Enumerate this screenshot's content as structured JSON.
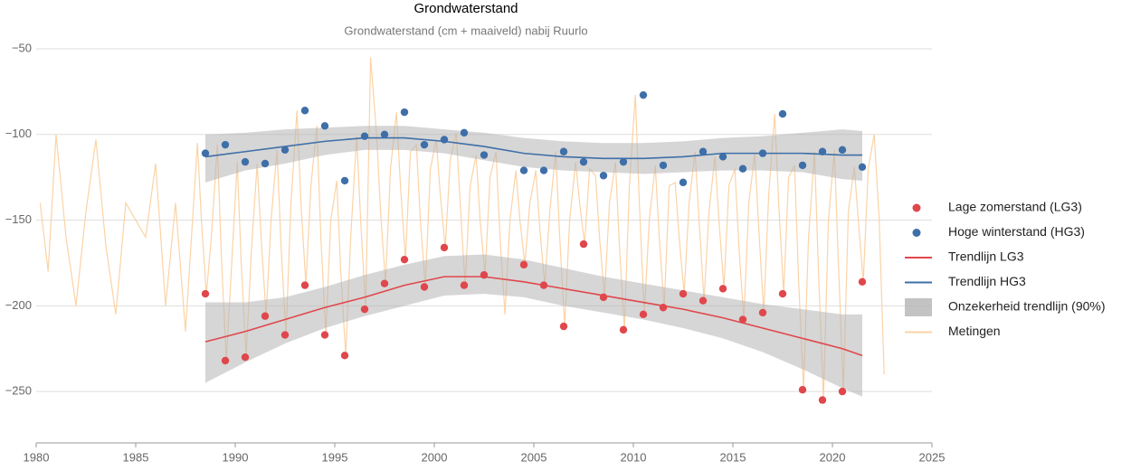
{
  "chart_data": {
    "type": "scatter",
    "title": "Grondwaterstand",
    "subtitle": "Grondwaterstand (cm + maaiveld) nabij Ruurlo",
    "xlim": [
      1980,
      2025
    ],
    "xticks": [
      1980,
      1985,
      1990,
      1995,
      2000,
      2005,
      2010,
      2015,
      2020,
      2025
    ],
    "ylim": [
      -280,
      -50
    ],
    "yticks": [
      {
        "value": -50,
        "label": "−50"
      },
      {
        "value": -100,
        "label": "−100"
      },
      {
        "value": -150,
        "label": "−150"
      },
      {
        "value": -200,
        "label": "−200"
      },
      {
        "value": -250,
        "label": "−250"
      }
    ],
    "grid": true,
    "legend": "right",
    "series": [
      {
        "name": "Metingen",
        "kind": "line",
        "color": "#fbd3a6",
        "x": [
          1980.2,
          1980.6,
          1981,
          1981.5,
          1982,
          1982.5,
          1983,
          1983.5,
          1984,
          1984.5,
          1985,
          1985.5,
          1986,
          1986.5,
          1987,
          1987.5,
          1988.1,
          1988.3,
          1988.55,
          1988.8,
          1989.1,
          1989.3,
          1989.55,
          1989.8,
          1990.1,
          1990.3,
          1990.55,
          1990.8,
          1991.1,
          1991.3,
          1991.55,
          1991.8,
          1992.1,
          1992.3,
          1992.55,
          1992.8,
          1993.1,
          1993.3,
          1993.55,
          1993.8,
          1994.1,
          1994.3,
          1994.55,
          1994.8,
          1995.1,
          1995.3,
          1995.55,
          1995.8,
          1996.1,
          1996.3,
          1996.55,
          1996.8,
          1997.1,
          1997.3,
          1997.55,
          1997.8,
          1998.1,
          1998.3,
          1998.55,
          1998.8,
          1999.1,
          1999.3,
          1999.55,
          1999.8,
          2000.1,
          2000.3,
          2000.55,
          2000.8,
          2001.1,
          2001.3,
          2001.55,
          2001.8,
          2002.1,
          2002.3,
          2002.55,
          2002.8,
          2003.1,
          2003.3,
          2003.55,
          2003.8,
          2004.1,
          2004.3,
          2004.55,
          2004.8,
          2005.1,
          2005.3,
          2005.55,
          2005.8,
          2006.1,
          2006.3,
          2006.55,
          2006.8,
          2007.1,
          2007.3,
          2007.55,
          2007.8,
          2008.1,
          2008.3,
          2008.55,
          2008.8,
          2009.1,
          2009.3,
          2009.55,
          2009.8,
          2010.1,
          2010.3,
          2010.55,
          2010.8,
          2011.1,
          2011.3,
          2011.55,
          2011.8,
          2012.1,
          2012.3,
          2012.55,
          2012.8,
          2013.1,
          2013.3,
          2013.55,
          2013.8,
          2014.1,
          2014.3,
          2014.55,
          2014.8,
          2015.1,
          2015.3,
          2015.55,
          2015.8,
          2016.1,
          2016.3,
          2016.55,
          2016.8,
          2017.1,
          2017.3,
          2017.55,
          2017.8,
          2018.1,
          2018.3,
          2018.55,
          2018.8,
          2019.1,
          2019.3,
          2019.55,
          2019.8,
          2020.1,
          2020.3,
          2020.55,
          2020.8,
          2021.1,
          2021.3,
          2021.55,
          2021.8,
          2022.1,
          2022.35,
          2022.6
        ],
        "values": [
          -140,
          -180,
          -100,
          -160,
          -200,
          -145,
          -103,
          -165,
          -205,
          -140,
          -150,
          -160,
          -117,
          -200,
          -140,
          -215,
          -105,
          -150,
          -193,
          -160,
          -106,
          -170,
          -232,
          -180,
          -116,
          -175,
          -230,
          -170,
          -117,
          -160,
          -206,
          -150,
          -109,
          -165,
          -217,
          -140,
          -86,
          -140,
          -188,
          -130,
          -95,
          -160,
          -217,
          -150,
          -127,
          -180,
          -229,
          -160,
          -101,
          -150,
          -202,
          -55,
          -100,
          -145,
          -187,
          -120,
          -87,
          -130,
          -173,
          -110,
          -106,
          -150,
          -189,
          -120,
          -103,
          -135,
          -166,
          -115,
          -99,
          -140,
          -188,
          -130,
          -112,
          -150,
          -182,
          -125,
          -110,
          -160,
          -205,
          -150,
          -121,
          -150,
          -176,
          -140,
          -121,
          -155,
          -188,
          -145,
          -110,
          -160,
          -212,
          -150,
          -116,
          -140,
          -164,
          -120,
          -124,
          -160,
          -195,
          -140,
          -116,
          -165,
          -214,
          -130,
          -77,
          -140,
          -205,
          -150,
          -118,
          -160,
          -201,
          -130,
          -128,
          -160,
          -193,
          -140,
          -110,
          -150,
          -197,
          -145,
          -113,
          -150,
          -190,
          -130,
          -120,
          -165,
          -208,
          -140,
          -111,
          -155,
          -204,
          -135,
          -88,
          -140,
          -193,
          -125,
          -118,
          -185,
          -249,
          -160,
          -110,
          -180,
          -255,
          -150,
          -109,
          -175,
          -250,
          -145,
          -119,
          -150,
          -186,
          -120,
          -100,
          -150,
          -240
        ]
      },
      {
        "name": "Onzekerheid trendlijn (90%)",
        "kind": "band",
        "color": "#b4b4b4",
        "x": [
          1988.5,
          1990.5,
          1992.5,
          1994.5,
          1996.5,
          1998.5,
          2000.5,
          2002.5,
          2004.5,
          2006.5,
          2008.5,
          2010.5,
          2012.5,
          2014.5,
          2016.5,
          2018.5,
          2020.5,
          2021.5
        ],
        "bands": [
          {
            "upper": [
              -198,
              -198,
              -195,
              -189,
              -182,
              -176,
              -171,
              -170,
              -173,
              -178,
              -183,
              -187,
              -191,
              -195,
              -199,
              -202,
              -205,
              -205
            ],
            "lower": [
              -245,
              -233,
              -222,
              -213,
              -206,
              -200,
              -194,
              -193,
              -195,
              -200,
              -204,
              -208,
              -213,
              -219,
              -227,
              -237,
              -248,
              -253
            ]
          },
          {
            "upper": [
              -100,
              -99,
              -97,
              -96,
              -95,
              -95,
              -97,
              -99,
              -102,
              -104,
              -105,
              -105,
              -104,
              -102,
              -101,
              -99,
              -97,
              -98
            ],
            "lower": [
              -128,
              -121,
              -117,
              -112,
              -109,
              -109,
              -111,
              -115,
              -119,
              -121,
              -122,
              -123,
              -122,
              -121,
              -121,
              -122,
              -126,
              -127
            ]
          }
        ]
      },
      {
        "name": "Trendlijn LG3",
        "kind": "line",
        "color": "#e0474c",
        "x": [
          1988.5,
          1990.5,
          1992.5,
          1994.5,
          1996.5,
          1998.5,
          2000.5,
          2002.5,
          2004.5,
          2006.5,
          2008.5,
          2010.5,
          2012.5,
          2014.5,
          2016.5,
          2018.5,
          2020.5,
          2021.5
        ],
        "values": [
          -221,
          -215,
          -208,
          -201,
          -195,
          -188,
          -183,
          -183,
          -186,
          -190,
          -194,
          -198,
          -202,
          -207,
          -213,
          -219,
          -225,
          -229
        ]
      },
      {
        "name": "Trendlijn HG3",
        "kind": "line",
        "color": "#3f6fa8",
        "x": [
          1988.5,
          1990.5,
          1992.5,
          1994.5,
          1996.5,
          1998.5,
          2000.5,
          2002.5,
          2004.5,
          2006.5,
          2008.5,
          2010.5,
          2012.5,
          2014.5,
          2016.5,
          2018.5,
          2020.5,
          2021.5
        ],
        "values": [
          -113,
          -110,
          -107,
          -104,
          -102,
          -102,
          -104,
          -107,
          -111,
          -113,
          -114,
          -114,
          -113,
          -111,
          -111,
          -111,
          -112,
          -112
        ]
      },
      {
        "name": "Lage zomerstand (LG3)",
        "kind": "points",
        "color": "#e0474c",
        "x": [
          1988.5,
          1989.5,
          1990.5,
          1991.5,
          1992.5,
          1993.5,
          1994.5,
          1995.5,
          1996.5,
          1997.5,
          1998.5,
          1999.5,
          2000.5,
          2001.5,
          2002.5,
          2004.5,
          2005.5,
          2006.5,
          2007.5,
          2008.5,
          2009.5,
          2010.5,
          2011.5,
          2012.5,
          2013.5,
          2014.5,
          2015.5,
          2016.5,
          2017.5,
          2018.5,
          2019.5,
          2020.5,
          2021.5
        ],
        "values": [
          -193,
          -232,
          -230,
          -206,
          -217,
          -188,
          -217,
          -229,
          -202,
          -187,
          -173,
          -189,
          -166,
          -188,
          -182,
          -176,
          -188,
          -212,
          -164,
          -195,
          -214,
          -205,
          -201,
          -193,
          -197,
          -190,
          -208,
          -204,
          -193,
          -249,
          -255,
          -250,
          -186
        ]
      },
      {
        "name": "Hoge winterstand (HG3)",
        "kind": "points",
        "color": "#3f6fa8",
        "x": [
          1988.5,
          1989.5,
          1990.5,
          1991.5,
          1992.5,
          1993.5,
          1994.5,
          1995.5,
          1996.5,
          1997.5,
          1998.5,
          1999.5,
          2000.5,
          2001.5,
          2002.5,
          2004.5,
          2005.5,
          2006.5,
          2007.5,
          2008.5,
          2009.5,
          2010.5,
          2011.5,
          2012.5,
          2013.5,
          2014.5,
          2015.5,
          2016.5,
          2017.5,
          2018.5,
          2019.5,
          2020.5,
          2021.5
        ],
        "values": [
          -111,
          -106,
          -116,
          -117,
          -109,
          -86,
          -95,
          -127,
          -101,
          -100,
          -87,
          -106,
          -103,
          -99,
          -112,
          -121,
          -121,
          -110,
          -116,
          -124,
          -116,
          -77,
          -118,
          -128,
          -110,
          -113,
          -120,
          -111,
          -88,
          -118,
          -110,
          -109,
          -119
        ]
      }
    ],
    "legend_order": [
      4,
      5,
      2,
      3,
      1,
      0
    ]
  }
}
